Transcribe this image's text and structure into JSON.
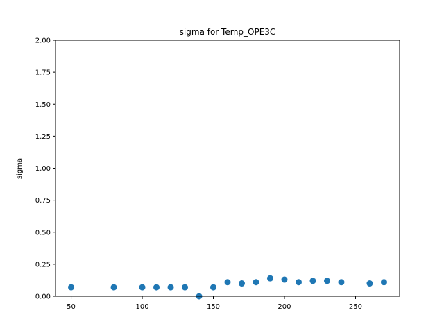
{
  "chart_data": {
    "type": "scatter",
    "title": "sigma for Temp_OPE3C",
    "xlabel": "",
    "ylabel": "sigma",
    "xlim": [
      39,
      281
    ],
    "ylim": [
      0,
      2
    ],
    "x_ticks": [
      50,
      100,
      150,
      200,
      250
    ],
    "x_tick_labels": [
      "50",
      "100",
      "150",
      "200",
      "250"
    ],
    "y_ticks": [
      0,
      0.25,
      0.5,
      0.75,
      1.0,
      1.25,
      1.5,
      1.75,
      2.0
    ],
    "y_tick_labels": [
      "0.00",
      "0.25",
      "0.50",
      "0.75",
      "1.00",
      "1.25",
      "1.50",
      "1.75",
      "2.00"
    ],
    "grid": false,
    "marker_color": "#1f77b4",
    "series": [
      {
        "x": [
          50,
          80,
          100,
          110,
          120,
          130,
          140,
          150,
          160,
          170,
          180,
          190,
          200,
          210,
          220,
          230,
          240,
          260,
          270
        ],
        "y": [
          0.07,
          0.07,
          0.07,
          0.07,
          0.07,
          0.07,
          0.0,
          0.07,
          0.11,
          0.1,
          0.11,
          0.14,
          0.13,
          0.11,
          0.12,
          0.12,
          0.11,
          0.1,
          0.11
        ]
      }
    ]
  }
}
